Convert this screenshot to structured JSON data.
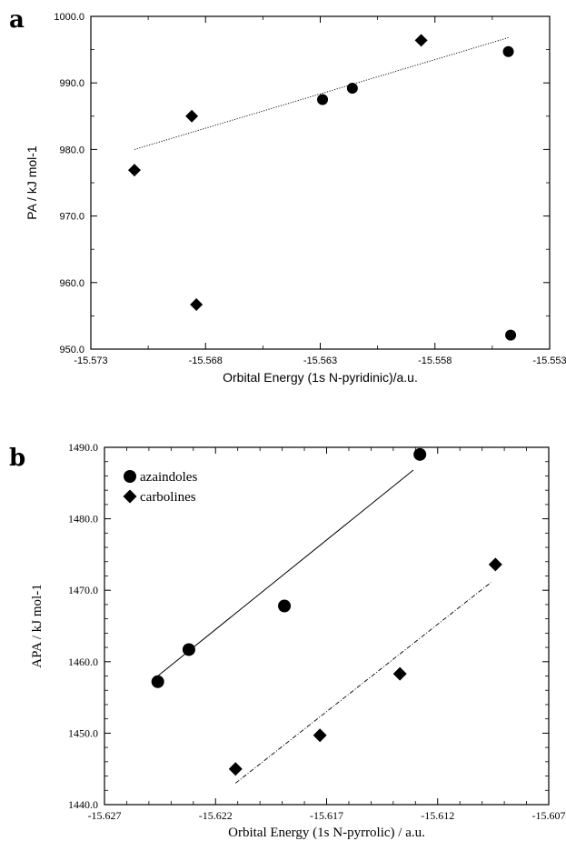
{
  "chart_data": [
    {
      "panel": "a",
      "type": "scatter",
      "xlabel": "Orbital Energy (1s N-pyridinic)/a.u.",
      "ylabel": "PA / kJ mol-1",
      "xlim": [
        -15.573,
        -15.553
      ],
      "ylim": [
        950.0,
        1000.0
      ],
      "x_ticks": [
        "-15.573",
        "-15.568",
        "-15.563",
        "-15.558",
        "-15.553"
      ],
      "y_ticks": [
        "950.0",
        "960.0",
        "970.0",
        "980.0",
        "990.0",
        "1000.0"
      ],
      "series": [
        {
          "marker": "circle",
          "x": [
            -15.5629,
            -15.5616,
            -15.5548,
            -15.5547
          ],
          "y": [
            987.5,
            989.2,
            994.7,
            952.1
          ]
        },
        {
          "marker": "diamond",
          "x": [
            -15.5711,
            -15.5686,
            -15.5684,
            -15.5586
          ],
          "y": [
            976.9,
            985.0,
            956.7,
            996.4
          ]
        }
      ],
      "fit_lines": [
        {
          "style": "dotted",
          "x": [
            -15.5711,
            -15.5548
          ],
          "y": [
            980.0,
            996.8
          ]
        }
      ],
      "grid": false
    },
    {
      "panel": "b",
      "type": "scatter",
      "xlabel": "Orbital Energy (1s N-pyrrolic) / a.u.",
      "ylabel": "APA / kJ mol-1",
      "xlim": [
        -15.627,
        -15.607
      ],
      "ylim": [
        1440.0,
        1490.0
      ],
      "x_ticks": [
        "-15.627",
        "-15.622",
        "-15.617",
        "-15.612",
        "-15.607"
      ],
      "y_ticks": [
        "1440.0",
        "1450.0",
        "1460.0",
        "1470.0",
        "1480.0",
        "1490.0"
      ],
      "legend_position": "top-left",
      "series": [
        {
          "name": "azaindoles",
          "marker": "circle",
          "x": [
            -15.6246,
            -15.6232,
            -15.6189,
            -15.6128
          ],
          "y": [
            1457.2,
            1461.7,
            1467.8,
            1489.0
          ]
        },
        {
          "name": "carbolines",
          "marker": "diamond",
          "x": [
            -15.6211,
            -15.6173,
            -15.6137,
            -15.6094
          ],
          "y": [
            1445.0,
            1449.7,
            1458.3,
            1473.6
          ]
        }
      ],
      "fit_lines": [
        {
          "series": "azaindoles",
          "style": "solid",
          "x": [
            -15.6246,
            -15.6131
          ],
          "y": [
            1458.0,
            1486.8
          ]
        },
        {
          "series": "carbolines",
          "style": "dashed",
          "x": [
            -15.6211,
            -15.6096
          ],
          "y": [
            1443.0,
            1471.1
          ]
        }
      ],
      "grid": false
    }
  ]
}
